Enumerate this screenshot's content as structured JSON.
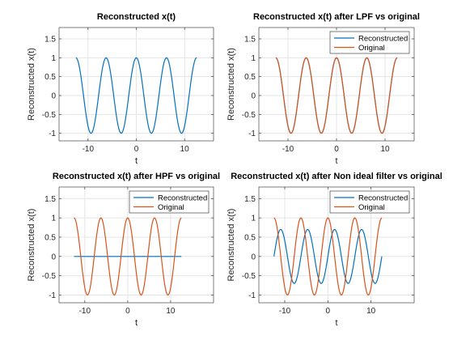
{
  "figure": {
    "background": "#ffffff",
    "axes_color": "#262626",
    "grid_color": "#e5e5e5"
  },
  "chart_data": [
    {
      "type": "line",
      "title": "Reconstructed x(t)",
      "xlabel": "t",
      "ylabel": "Reconstructed x(t)",
      "xlim": [
        -16,
        16
      ],
      "ylim": [
        -1.2,
        1.8
      ],
      "xticks": [
        -10,
        0,
        10
      ],
      "yticks": [
        -1,
        -0.5,
        0,
        0.5,
        1,
        1.5
      ],
      "xtick_labels": [
        "-10",
        "0",
        "10"
      ],
      "ytick_labels": [
        "-1",
        "-0.5",
        "0",
        "0.5",
        "1",
        "1.5"
      ],
      "grid": true,
      "legend": null,
      "series": [
        {
          "color": "#0072BD",
          "fn": "cos",
          "amplitude": 1,
          "period": 6.25,
          "x_range": [
            -12.5,
            12.5
          ],
          "samples": 161
        }
      ]
    },
    {
      "type": "line",
      "title": "Reconstructed x(t) after LPF vs original",
      "xlabel": "t",
      "ylabel": "Reconstructed x(t)",
      "xlim": [
        -16,
        16
      ],
      "ylim": [
        -1.2,
        1.8
      ],
      "xticks": [
        -10,
        0,
        10
      ],
      "yticks": [
        -1,
        -0.5,
        0,
        0.5,
        1,
        1.5
      ],
      "xtick_labels": [
        "-10",
        "0",
        "10"
      ],
      "ytick_labels": [
        "-1",
        "-0.5",
        "0",
        "0.5",
        "1",
        "1.5"
      ],
      "grid": true,
      "legend": "top-right",
      "series": [
        {
          "name": "Reconstructed",
          "color": "#0072BD",
          "fn": "cos",
          "amplitude": 1,
          "period": 6.25,
          "x_range": [
            -12.5,
            12.5
          ],
          "samples": 161
        },
        {
          "name": "Original",
          "color": "#D95319",
          "fn": "cos",
          "amplitude": 1,
          "period": 6.25,
          "x_range": [
            -12.5,
            12.5
          ],
          "samples": 161
        }
      ]
    },
    {
      "type": "line",
      "title": "Reconstructed x(t) after HPF vs original",
      "xlabel": "t",
      "ylabel": "Reconstructed x(t)",
      "xlim": [
        -16,
        20
      ],
      "ylim": [
        -1.2,
        1.8
      ],
      "xticks": [
        -10,
        0,
        10
      ],
      "yticks": [
        -1,
        -0.5,
        0,
        0.5,
        1,
        1.5
      ],
      "xtick_labels": [
        "-10",
        "0",
        "10"
      ],
      "ytick_labels": [
        "-1",
        "-0.5",
        "0",
        "0.5",
        "1",
        "1.5"
      ],
      "grid": true,
      "legend": "top-right",
      "series": [
        {
          "name": "Reconstructed",
          "color": "#0072BD",
          "fn": "const",
          "amplitude": 0,
          "period": 6.25,
          "x_range": [
            -12.5,
            12.5
          ],
          "samples": 161
        },
        {
          "name": "Original",
          "color": "#D95319",
          "fn": "cos",
          "amplitude": 1,
          "period": 6.25,
          "x_range": [
            -12.5,
            12.5
          ],
          "samples": 161
        }
      ]
    },
    {
      "type": "line",
      "title": "Reconstructed x(t) after Non ideal filter vs original",
      "xlabel": "t",
      "ylabel": "Reconstructed x(t)",
      "xlim": [
        -16,
        20
      ],
      "ylim": [
        -1.2,
        1.8
      ],
      "xticks": [
        -10,
        0,
        10
      ],
      "yticks": [
        -1,
        -0.5,
        0,
        0.5,
        1,
        1.5
      ],
      "xtick_labels": [
        "-10",
        "0",
        "10"
      ],
      "ytick_labels": [
        "-1",
        "-0.5",
        "0",
        "0.5",
        "1",
        "1.5"
      ],
      "grid": true,
      "legend": "top-right",
      "series": [
        {
          "name": "Reconstructed",
          "color": "#0072BD",
          "fn": "sin",
          "amplitude": 0.7,
          "period": 6.25,
          "x_range": [
            -12.5,
            12.5
          ],
          "samples": 161
        },
        {
          "name": "Original",
          "color": "#D95319",
          "fn": "cos",
          "amplitude": 1,
          "period": 6.25,
          "x_range": [
            -12.5,
            12.5
          ],
          "samples": 161
        }
      ]
    }
  ]
}
